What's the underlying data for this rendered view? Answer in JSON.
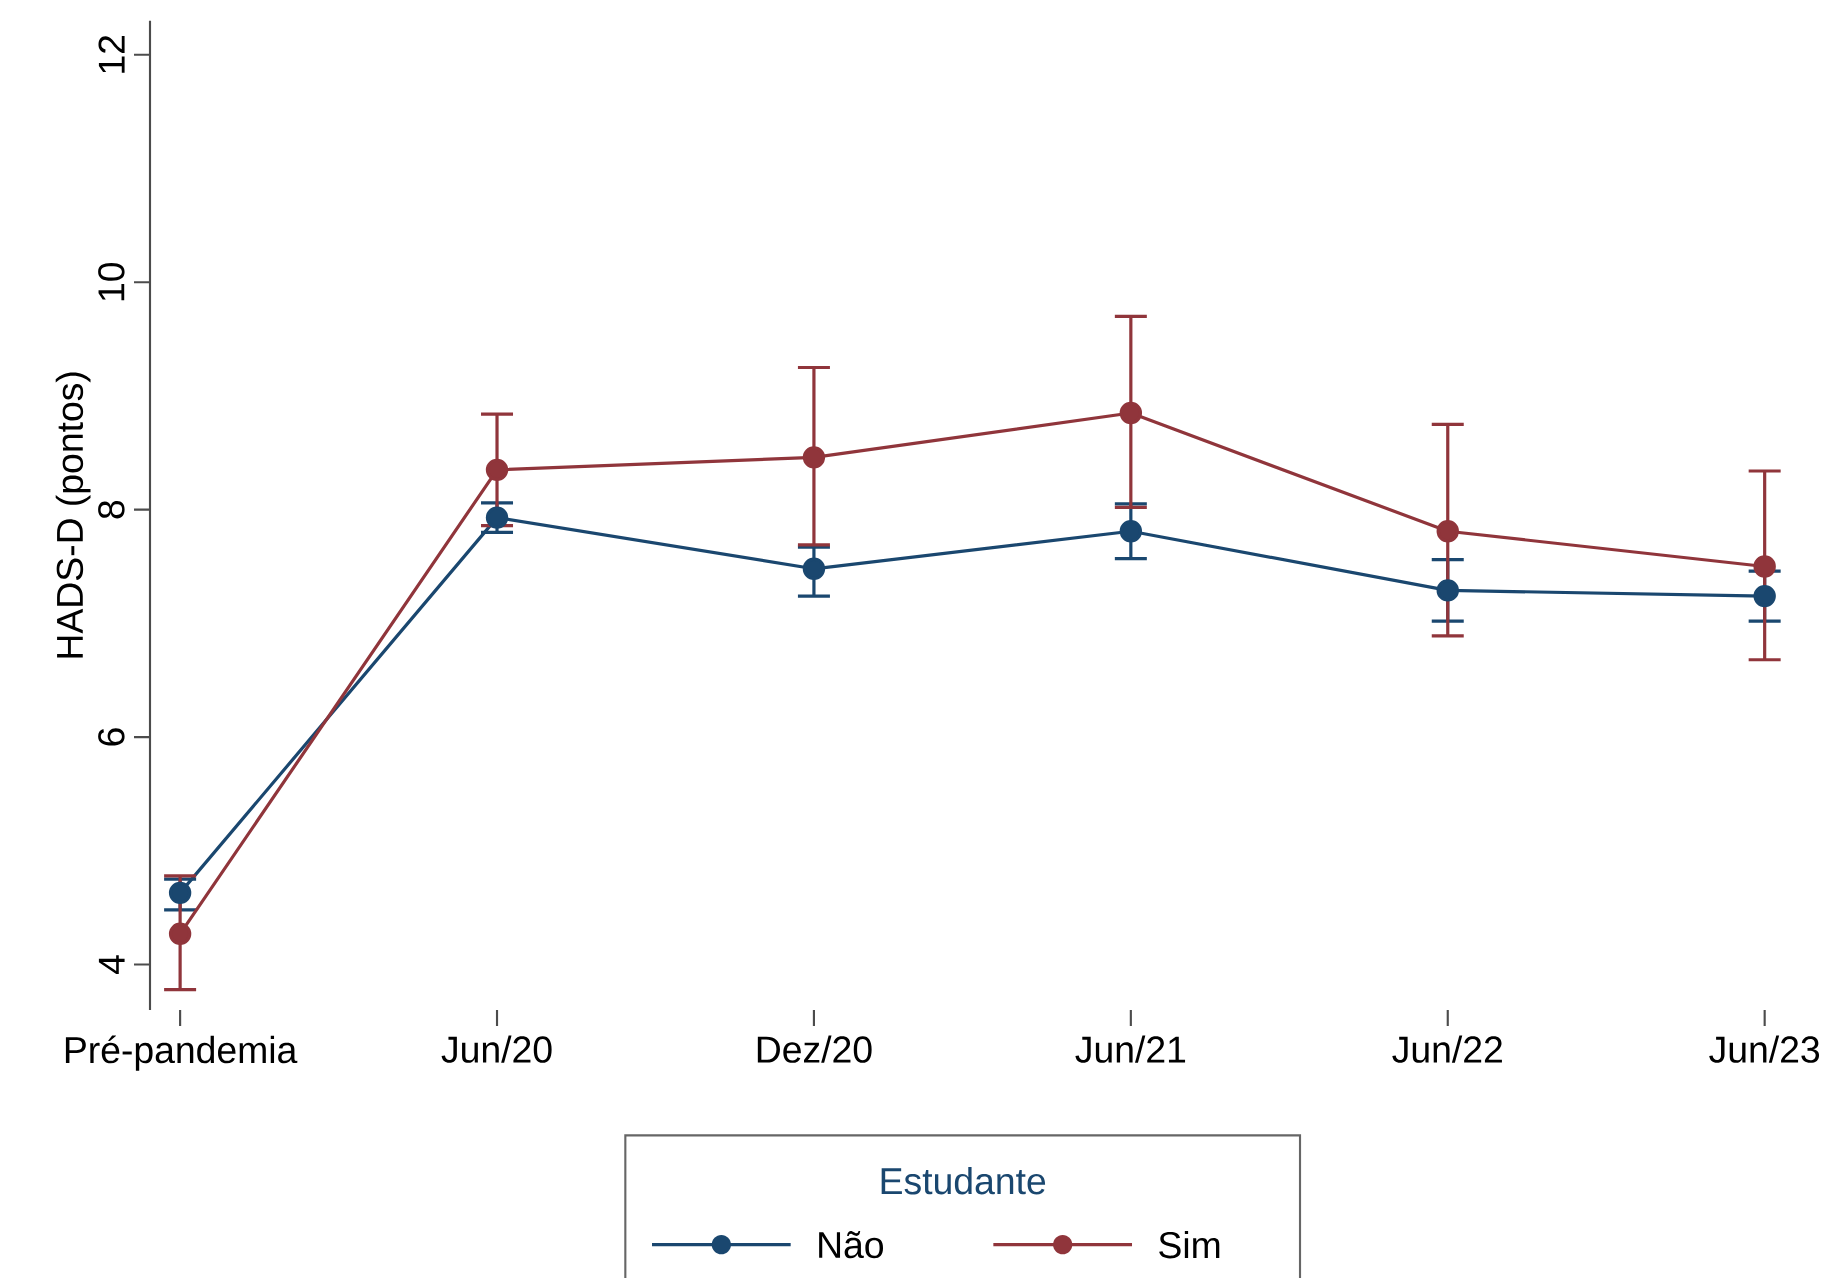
{
  "chart_data": {
    "type": "line",
    "ylabel": "HADS-D (pontos)",
    "legend_title": "Estudante",
    "categories": [
      "Pré-pandemia",
      "Jun/20",
      "Dez/20",
      "Jun/21",
      "Jun/22",
      "Jun/23"
    ],
    "series": [
      {
        "name": "Não",
        "color": "#1a476f",
        "values": [
          4.63,
          7.93,
          7.48,
          7.81,
          7.29,
          7.24
        ],
        "errors": [
          [
            4.48,
            4.75
          ],
          [
            7.8,
            8.06
          ],
          [
            7.24,
            7.67
          ],
          [
            7.57,
            8.05
          ],
          [
            7.02,
            7.56
          ],
          [
            7.02,
            7.46
          ]
        ]
      },
      {
        "name": "Sim",
        "color": "#90353b",
        "values": [
          4.27,
          8.35,
          8.46,
          8.85,
          7.81,
          7.5
        ],
        "errors": [
          [
            3.78,
            4.78
          ],
          [
            7.86,
            8.84
          ],
          [
            7.69,
            9.25
          ],
          [
            8.02,
            9.7
          ],
          [
            6.89,
            8.75
          ],
          [
            6.68,
            8.34
          ]
        ]
      }
    ],
    "ylim": [
      3.6,
      12.3
    ],
    "yticks": [
      4,
      6,
      8,
      10,
      12
    ],
    "grid": false,
    "legend": "bottom",
    "marker": "circle",
    "line_style": "solid"
  }
}
